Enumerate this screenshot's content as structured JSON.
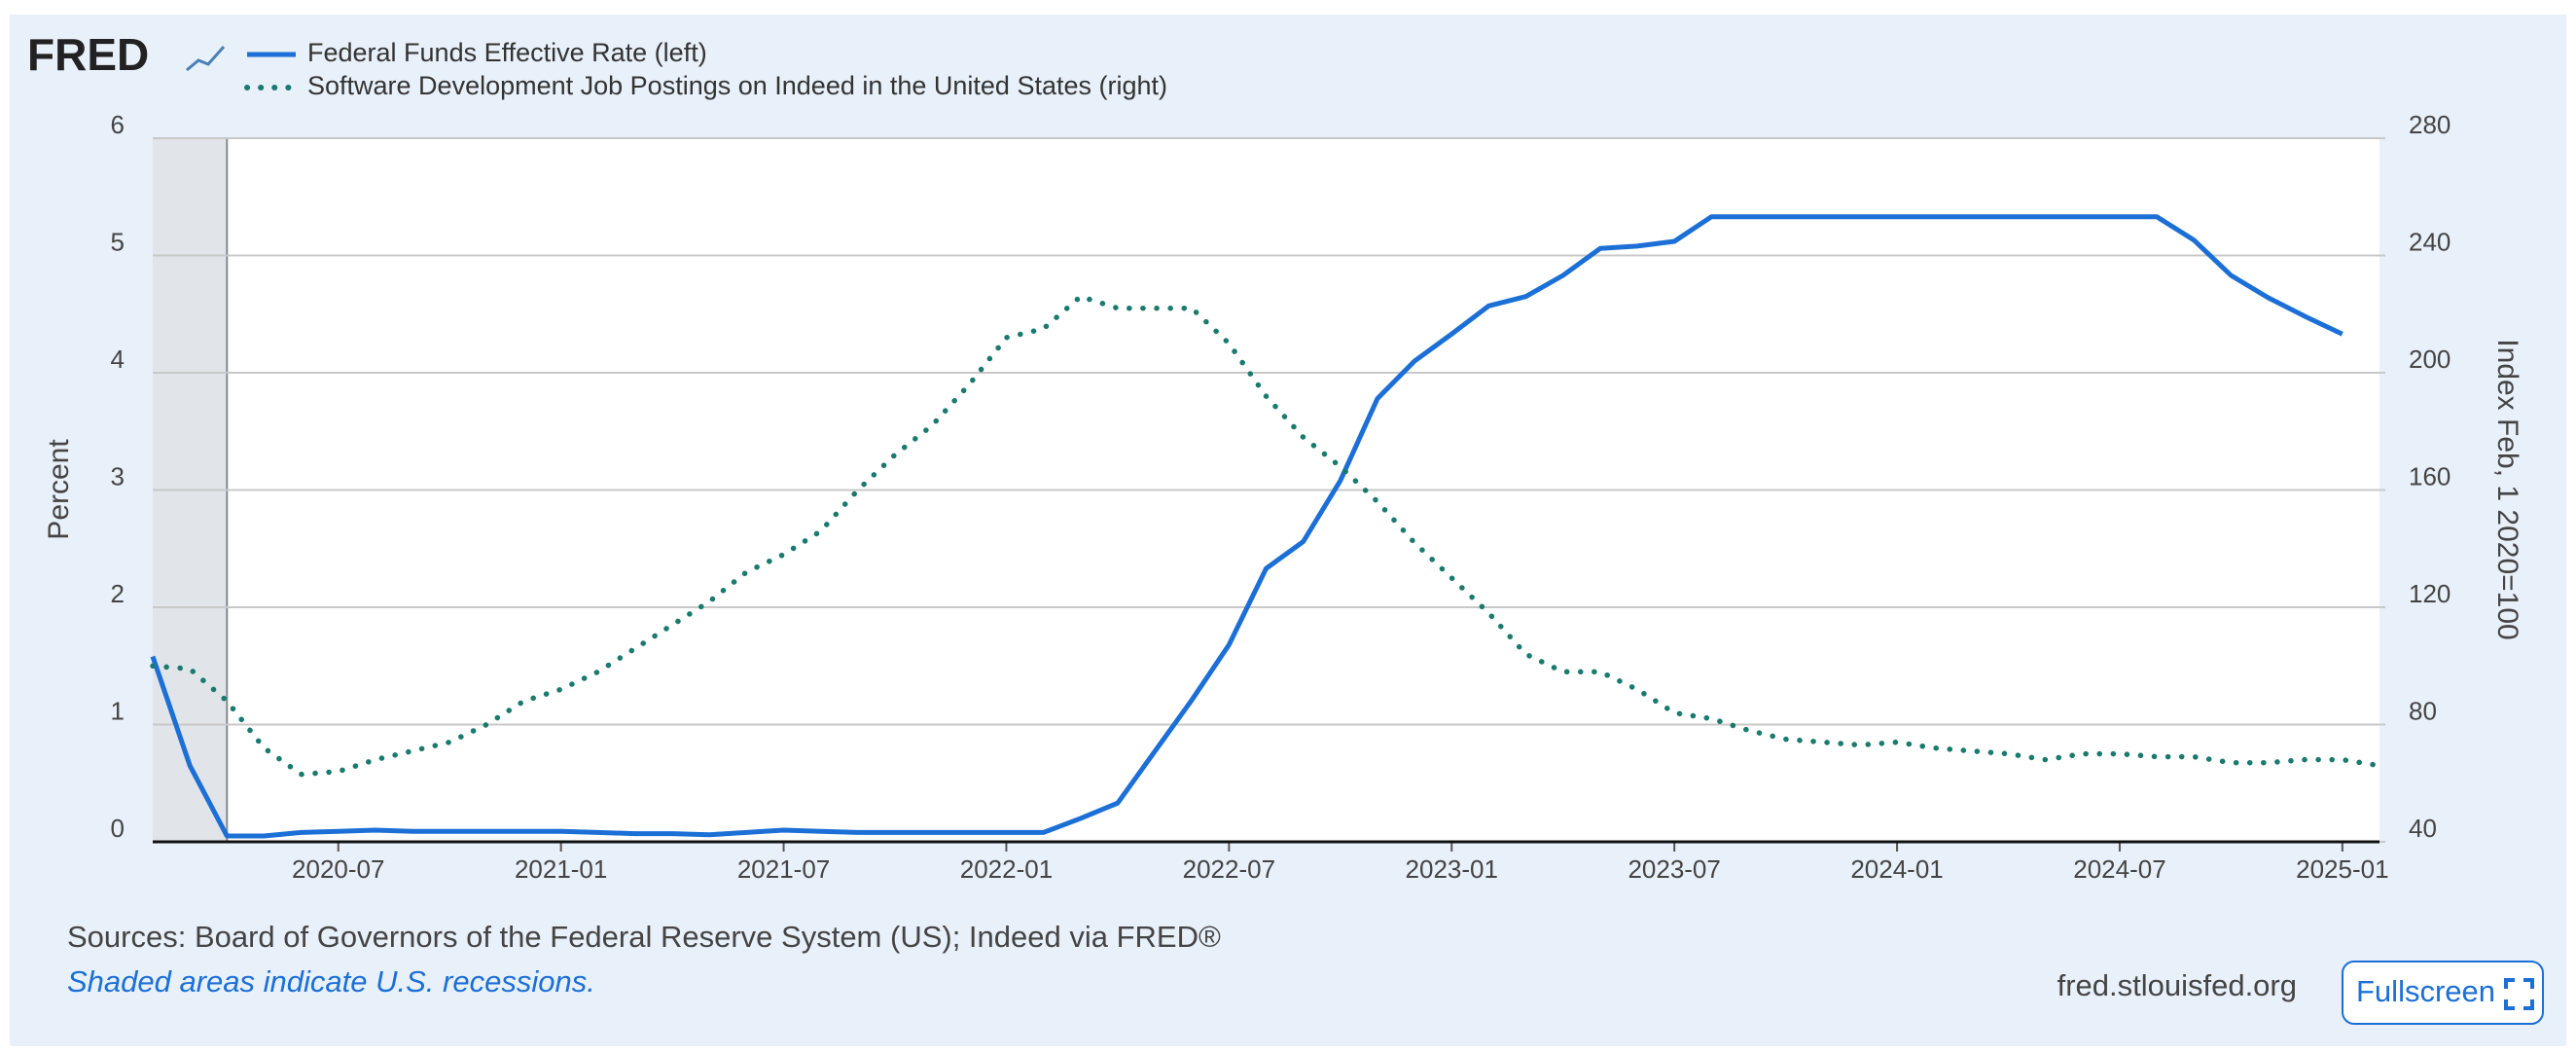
{
  "logo": "FRED",
  "chart_data": {
    "type": "line",
    "ylabel": "Percent",
    "y2label": "Index Feb, 1 2020=100",
    "x": [
      "2020-02",
      "2020-03",
      "2020-04",
      "2020-05",
      "2020-06",
      "2020-07",
      "2020-08",
      "2020-09",
      "2020-10",
      "2020-11",
      "2020-12",
      "2021-01",
      "2021-02",
      "2021-03",
      "2021-04",
      "2021-05",
      "2021-06",
      "2021-07",
      "2021-08",
      "2021-09",
      "2021-10",
      "2021-11",
      "2021-12",
      "2022-01",
      "2022-02",
      "2022-03",
      "2022-04",
      "2022-05",
      "2022-06",
      "2022-07",
      "2022-08",
      "2022-09",
      "2022-10",
      "2022-11",
      "2022-12",
      "2023-01",
      "2023-02",
      "2023-03",
      "2023-04",
      "2023-05",
      "2023-06",
      "2023-07",
      "2023-08",
      "2023-09",
      "2023-10",
      "2023-11",
      "2023-12",
      "2024-01",
      "2024-02",
      "2024-03",
      "2024-04",
      "2024-05",
      "2024-06",
      "2024-07",
      "2024-08",
      "2024-09",
      "2024-10",
      "2024-11",
      "2024-12",
      "2025-01",
      "2025-02"
    ],
    "series": [
      {
        "name": "Federal Funds Effective Rate (left)",
        "color": "#1b6fd6",
        "style": "solid",
        "axis": "y",
        "values": [
          1.58,
          0.65,
          0.05,
          0.05,
          0.08,
          0.09,
          0.1,
          0.09,
          0.09,
          0.09,
          0.09,
          0.09,
          0.08,
          0.07,
          0.07,
          0.06,
          0.08,
          0.1,
          0.09,
          0.08,
          0.08,
          0.08,
          0.08,
          0.08,
          0.08,
          0.2,
          0.33,
          0.77,
          1.21,
          1.68,
          2.33,
          2.56,
          3.08,
          3.78,
          4.1,
          4.33,
          4.57,
          4.65,
          4.83,
          5.06,
          5.08,
          5.12,
          5.33,
          5.33,
          5.33,
          5.33,
          5.33,
          5.33,
          5.33,
          5.33,
          5.33,
          5.33,
          5.33,
          5.33,
          5.33,
          5.13,
          4.83,
          4.64,
          4.48,
          4.33,
          null
        ]
      },
      {
        "name": "Software Development Job Postings on Indeed in the United States (right)",
        "color": "#1a7a6e",
        "style": "dotted",
        "axis": "y2",
        "values": [
          100,
          99,
          88,
          72,
          63,
          64,
          68,
          71,
          74,
          80,
          88,
          92,
          98,
          106,
          114,
          122,
          132,
          138,
          146,
          160,
          172,
          182,
          196,
          212,
          215,
          226,
          222,
          222,
          222,
          210,
          192,
          178,
          168,
          156,
          142,
          130,
          118,
          104,
          98,
          98,
          92,
          84,
          82,
          78,
          75,
          74,
          73,
          74,
          72,
          71,
          70,
          68,
          70,
          70,
          69,
          69,
          67,
          67,
          68,
          68,
          66
        ]
      }
    ],
    "xlim": [
      "2020-02",
      "2025-02"
    ],
    "xticks": [
      "2020-07",
      "2021-01",
      "2021-07",
      "2022-01",
      "2022-07",
      "2023-01",
      "2023-07",
      "2024-01",
      "2024-07",
      "2025-01"
    ],
    "ylim": [
      0,
      6
    ],
    "yticks": [
      0,
      1,
      2,
      3,
      4,
      5,
      6
    ],
    "y2lim": [
      40,
      280
    ],
    "y2ticks": [
      40,
      80,
      120,
      160,
      200,
      240,
      280
    ],
    "grid": true,
    "recessions": [
      [
        "2020-02",
        "2020-04"
      ]
    ]
  },
  "footer": {
    "sources": "Sources: Board of Governors of the Federal Reserve System (US); Indeed via FRED®",
    "note": "Shaded areas indicate U.S. recessions.",
    "site": "fred.stlouisfed.org",
    "button": "Fullscreen"
  }
}
